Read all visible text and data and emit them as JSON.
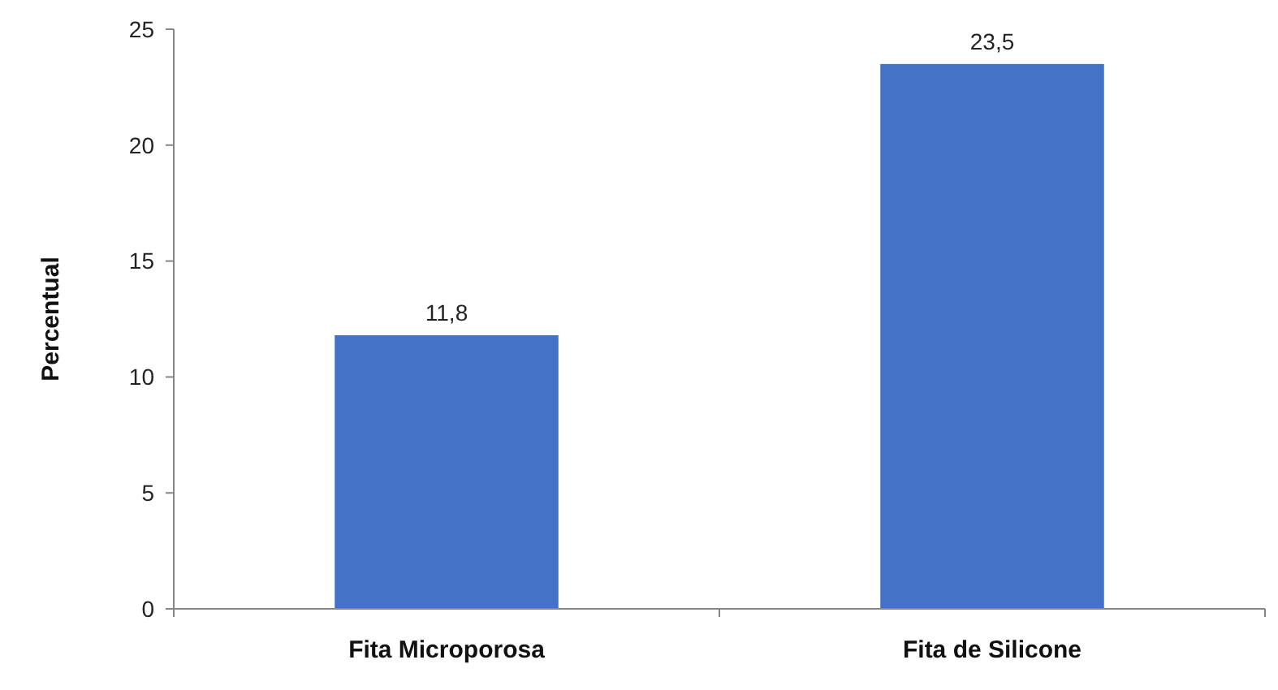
{
  "chart_data": {
    "type": "bar",
    "ylabel": "Percentual",
    "categories": [
      "Fita Microporosa",
      "Fita de Silicone"
    ],
    "values": [
      11.8,
      23.5
    ],
    "value_labels": [
      "11,8",
      "23,5"
    ],
    "color": "#4472c4",
    "ylim": [
      0,
      25
    ],
    "yticks": [
      0,
      5,
      10,
      15,
      20,
      25
    ],
    "grid": false
  }
}
